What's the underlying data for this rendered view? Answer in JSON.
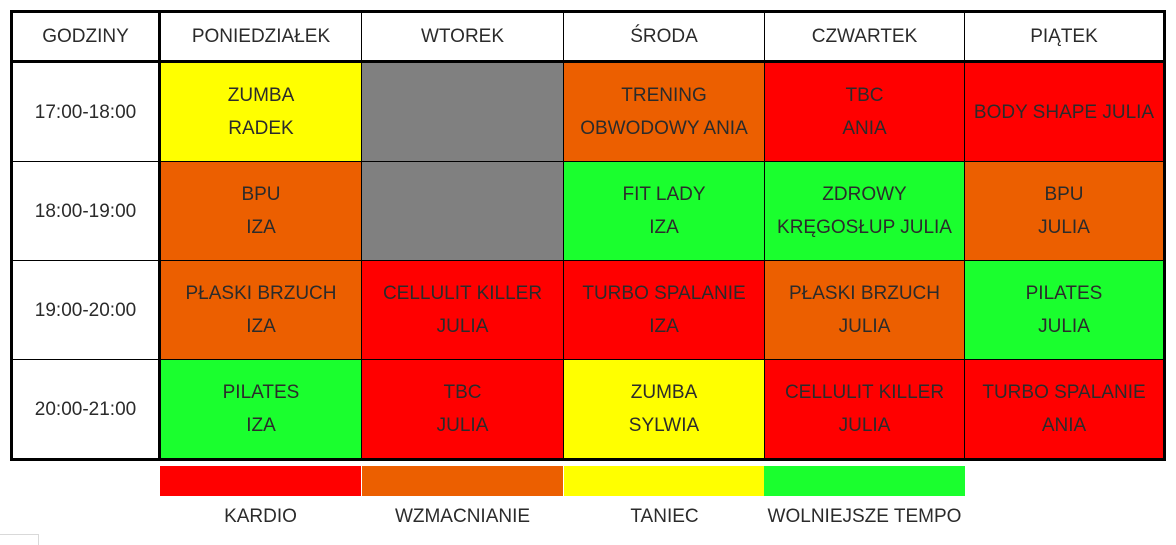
{
  "colors": {
    "kardio": "#ff0000",
    "wzmacnianie": "#ec5f00",
    "taniec": "#ffff00",
    "wolniejsze": "#1aff2e",
    "empty": "#808080"
  },
  "headers": [
    "GODZINY",
    "PONIEDZIAŁEK",
    "WTOREK",
    "ŚRODA",
    "CZWARTEK",
    "PIĄTEK"
  ],
  "rows": [
    {
      "time": "17:00-18:00",
      "cells": [
        {
          "lines": [
            "ZUMBA",
            "RADEK"
          ],
          "category": "taniec"
        },
        {
          "lines": [],
          "category": "empty"
        },
        {
          "lines": [
            "TRENING",
            "OBWODOWY ANIA"
          ],
          "category": "wzmacnianie"
        },
        {
          "lines": [
            "TBC",
            "ANIA"
          ],
          "category": "kardio"
        },
        {
          "lines": [
            "BODY SHAPE JULIA"
          ],
          "category": "kardio"
        }
      ]
    },
    {
      "time": "18:00-19:00",
      "cells": [
        {
          "lines": [
            "BPU",
            "IZA"
          ],
          "category": "wzmacnianie"
        },
        {
          "lines": [],
          "category": "empty"
        },
        {
          "lines": [
            "FIT LADY",
            "IZA"
          ],
          "category": "wolniejsze"
        },
        {
          "lines": [
            "ZDROWY",
            "KRĘGOSŁUP JULIA"
          ],
          "category": "wolniejsze"
        },
        {
          "lines": [
            "BPU",
            "JULIA"
          ],
          "category": "wzmacnianie"
        }
      ]
    },
    {
      "time": "19:00-20:00",
      "cells": [
        {
          "lines": [
            "PŁASKI BRZUCH",
            "IZA"
          ],
          "category": "wzmacnianie"
        },
        {
          "lines": [
            "CELLULIT KILLER",
            "JULIA"
          ],
          "category": "kardio"
        },
        {
          "lines": [
            "TURBO SPALANIE",
            "IZA"
          ],
          "category": "kardio"
        },
        {
          "lines": [
            "PŁASKI BRZUCH",
            "JULIA"
          ],
          "category": "wzmacnianie"
        },
        {
          "lines": [
            "PILATES",
            "JULIA"
          ],
          "category": "wolniejsze"
        }
      ]
    },
    {
      "time": "20:00-21:00",
      "cells": [
        {
          "lines": [
            "PILATES",
            "IZA"
          ],
          "category": "wolniejsze"
        },
        {
          "lines": [
            "TBC",
            "JULIA"
          ],
          "category": "kardio"
        },
        {
          "lines": [
            "ZUMBA",
            "SYLWIA"
          ],
          "category": "taniec"
        },
        {
          "lines": [
            "CELLULIT KILLER",
            "JULIA"
          ],
          "category": "kardio"
        },
        {
          "lines": [
            "TURBO SPALANIE",
            "ANIA"
          ],
          "category": "kardio"
        }
      ]
    }
  ],
  "legend": [
    {
      "label": "KARDIO",
      "category": "kardio"
    },
    {
      "label": "WZMACNIANIE",
      "category": "wzmacnianie"
    },
    {
      "label": "TANIEC",
      "category": "taniec"
    },
    {
      "label": "WOLNIEJSZE TEMPO",
      "category": "wolniejsze"
    }
  ]
}
